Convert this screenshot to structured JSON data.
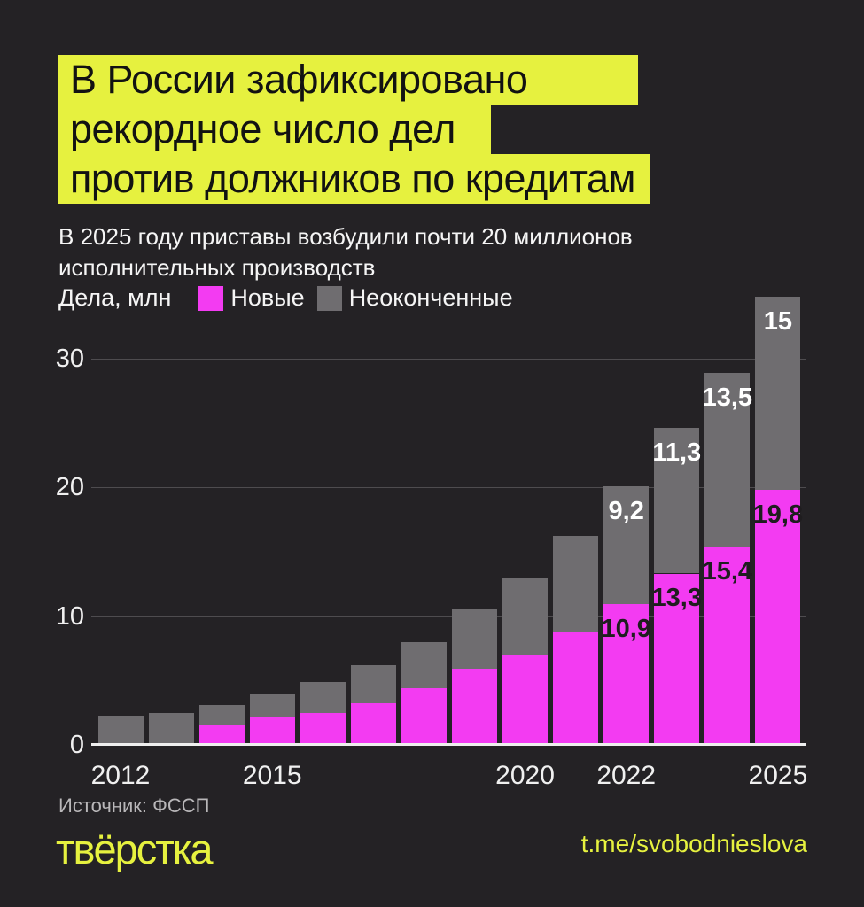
{
  "title": {
    "lines": [
      "В России зафиксировано",
      "рекордное число дел",
      "против должников по кредитам"
    ]
  },
  "subtitle": "В 2025 году приставы возбудили почти 20 миллионов\nисполнительных производств",
  "legend": {
    "unit_label": "Дела, млн",
    "series": [
      {
        "label": "Новые",
        "color": "#f33bf2"
      },
      {
        "label": "Неоконченные",
        "color": "#6f6d70"
      }
    ]
  },
  "chart_data": {
    "type": "bar",
    "stacked": true,
    "title": "В России зафиксировано рекордное число дел против должников по кредитам",
    "unit": "Дела, млн",
    "categories": [
      2012,
      2013,
      2014,
      2015,
      2016,
      2017,
      2018,
      2019,
      2020,
      2021,
      2022,
      2023,
      2024,
      2025
    ],
    "series": [
      {
        "name": "Новые",
        "color": "#f33bf2",
        "values": [
          0,
          0,
          1.5,
          2.1,
          2.5,
          3.2,
          4.4,
          5.9,
          7.0,
          8.7,
          10.9,
          13.3,
          15.4,
          19.8
        ]
      },
      {
        "name": "Неоконченные",
        "color": "#6f6d70",
        "values": [
          2.3,
          2.5,
          1.6,
          1.9,
          2.4,
          3.0,
          3.6,
          4.7,
          6.0,
          7.5,
          9.2,
          11.3,
          13.5,
          15.0
        ]
      }
    ],
    "bar_labels": [
      {
        "year": 2022,
        "new": "10,9",
        "unfinished": "9,2"
      },
      {
        "year": 2023,
        "new": "13,3",
        "unfinished": "11,3"
      },
      {
        "year": 2024,
        "new": "15,4",
        "unfinished": "13,5"
      },
      {
        "year": 2025,
        "new": "19,8",
        "unfinished": "15"
      }
    ],
    "y_ticks": [
      0,
      10,
      20,
      30
    ],
    "ylim": [
      0,
      36
    ],
    "x_tick_years": [
      2012,
      2015,
      2020,
      2022,
      2025
    ],
    "grid": true,
    "legend_position": "top"
  },
  "footer": {
    "source": "Источник: ФССП",
    "logo": "твёрстка",
    "link": "t.me/svobodnieslova"
  },
  "colors": {
    "background": "#242225",
    "accent_yellow": "#e6f13f",
    "accent_magenta": "#f33bf2",
    "bar_gray": "#6f6d70",
    "text_light": "#f5f5f5",
    "label_dark": "#1f1d1f",
    "gridline": "#4e4c4f",
    "source_text": "#b9b7b9"
  }
}
